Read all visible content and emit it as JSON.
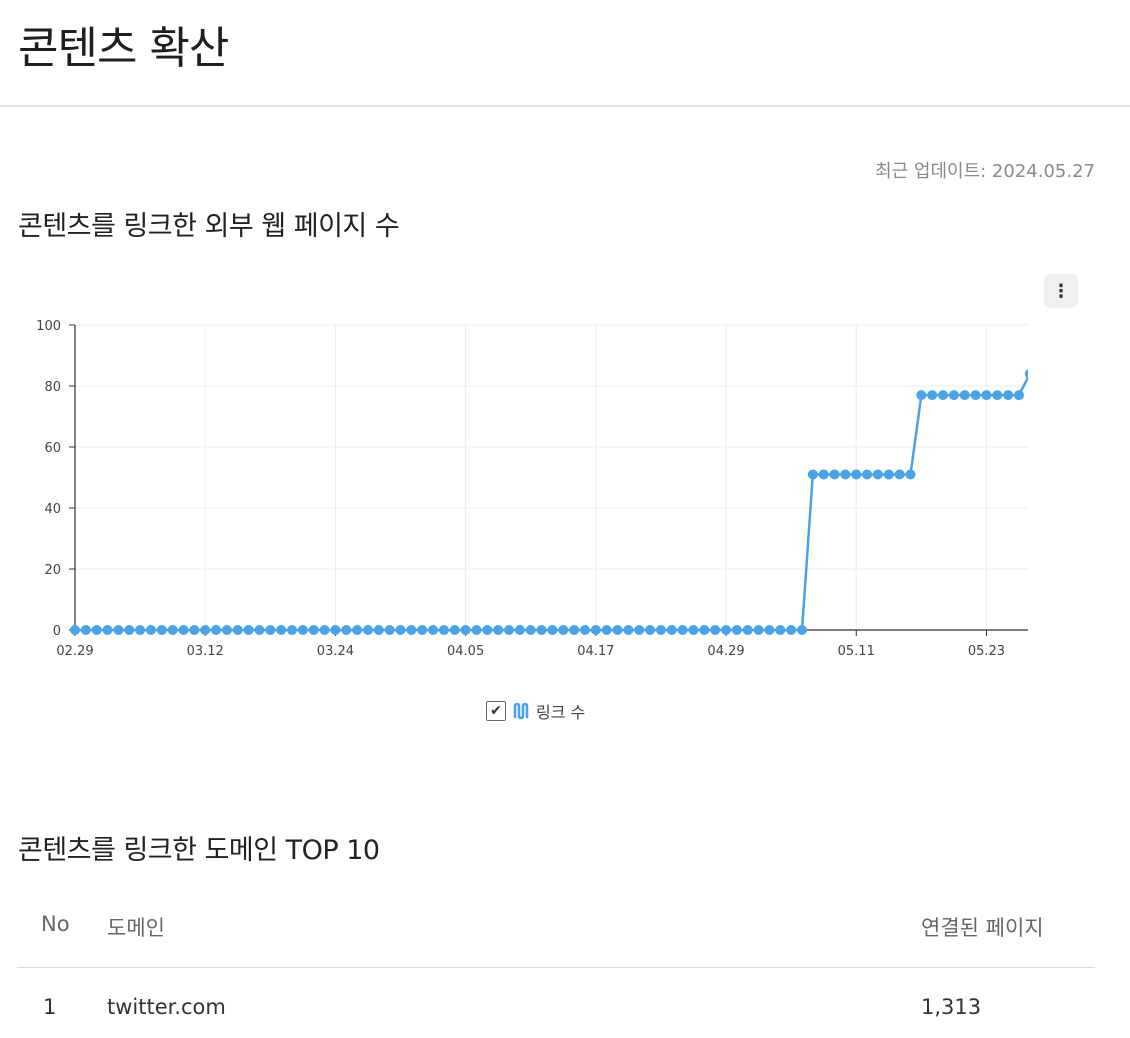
{
  "page": {
    "title": "콘텐츠 확산",
    "update_label": "최근 업데이트: 2024.05.27"
  },
  "section1": {
    "title": "콘텐츠를 링크한 외부 웹 페이지 수",
    "menu_icon": "⋮"
  },
  "legend": {
    "check": "✔",
    "label": "링크 수"
  },
  "colors": {
    "series": "#4aa3e6",
    "grid": "#ececec",
    "axis": "#333333"
  },
  "chart_data": {
    "type": "line",
    "xlabel": "",
    "ylabel": "",
    "ylim": [
      0,
      100
    ],
    "yticks": [
      0,
      20,
      40,
      60,
      80,
      100
    ],
    "x_tick_labels": [
      "02.29",
      "03.12",
      "03.24",
      "04.05",
      "04.17",
      "04.29",
      "05.11",
      "05.23"
    ],
    "x_tick_index": [
      0,
      12,
      24,
      36,
      48,
      60,
      72,
      84
    ],
    "series": [
      {
        "name": "링크 수",
        "values": [
          0,
          0,
          0,
          0,
          0,
          0,
          0,
          0,
          0,
          0,
          0,
          0,
          0,
          0,
          0,
          0,
          0,
          0,
          0,
          0,
          0,
          0,
          0,
          0,
          0,
          0,
          0,
          0,
          0,
          0,
          0,
          0,
          0,
          0,
          0,
          0,
          0,
          0,
          0,
          0,
          0,
          0,
          0,
          0,
          0,
          0,
          0,
          0,
          0,
          0,
          0,
          0,
          0,
          0,
          0,
          0,
          0,
          0,
          0,
          0,
          0,
          0,
          0,
          0,
          0,
          0,
          0,
          0,
          51,
          51,
          51,
          51,
          51,
          51,
          51,
          51,
          51,
          51,
          77,
          77,
          77,
          77,
          77,
          77,
          77,
          77,
          77,
          77,
          84
        ]
      }
    ],
    "grid": true,
    "legend_position": "bottom"
  },
  "section2": {
    "title": "콘텐츠를 링크한 도메인 TOP 10",
    "columns": {
      "no": "No",
      "domain": "도메인",
      "pages": "연결된 페이지"
    },
    "rows": [
      {
        "no": "1",
        "domain": "twitter.com",
        "pages": "1,313"
      }
    ]
  }
}
